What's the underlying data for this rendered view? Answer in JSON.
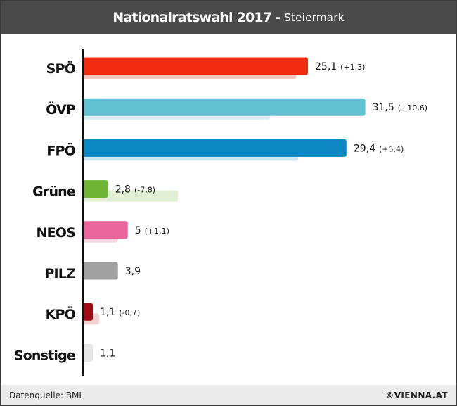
{
  "header": {
    "title": "Nationalratswahl 2017",
    "separator": "-",
    "subtitle": "Steiermark"
  },
  "footer": {
    "source": "Datenquelle: BMI",
    "logo": "©VIENNA.AT"
  },
  "chart_data": {
    "type": "bar",
    "orientation": "horizontal",
    "title": "Nationalratswahl 2017 - Steiermark",
    "categories": [
      "SPÖ",
      "ÖVP",
      "FPÖ",
      "Grüne",
      "NEOS",
      "PILZ",
      "KPÖ",
      "Sonstige"
    ],
    "series": [
      {
        "values": [
          25.1,
          31.5,
          29.4,
          2.8,
          5,
          3.9,
          1.1,
          1.1
        ]
      },
      {
        "values": [
          23.8,
          20.9,
          24.0,
          10.6,
          3.9,
          null,
          1.8,
          null
        ]
      }
    ],
    "value_labels": [
      "25,1",
      "31,5",
      "29,4",
      "2,8",
      "5",
      "3,9",
      "1,1",
      "1,1"
    ],
    "change_labels": [
      "(+1,3)",
      "(+10,6)",
      "(+5,4)",
      "(-7,8)",
      "(+1,1)",
      "",
      "(-0,7)",
      ""
    ],
    "colors": [
      "#f12c0e",
      "#63c2d2",
      "#0d86c4",
      "#6db532",
      "#e8669b",
      "#a0a0a0",
      "#a10b14",
      "#e6e6e6"
    ],
    "light_colors": [
      "#f9c6c0",
      "#dcf0f4",
      "#cde7f4",
      "#e1f0d4",
      "#f9d5e3",
      "#ececec",
      "#f4d3d5",
      "#ededed"
    ],
    "xlim": [
      0,
      33
    ],
    "grid": false,
    "legend": "none"
  }
}
